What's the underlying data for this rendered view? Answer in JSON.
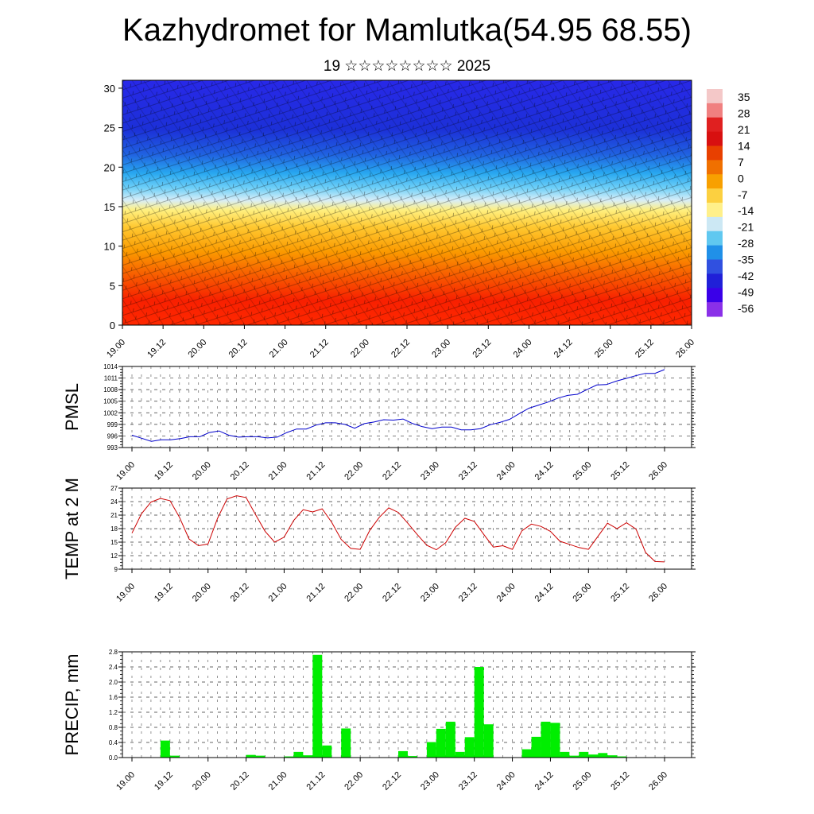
{
  "title": "Kazhydromet for Mamlutka(54.95 68.55)",
  "subtitle": "19 ☆☆☆☆☆☆☆☆ 2025",
  "chart_data": [
    {
      "type": "heatmap",
      "xlabel": "",
      "ylabel": "",
      "x_ticks": [
        "19.00",
        "19.12",
        "20.00",
        "20.12",
        "21.00",
        "21.12",
        "22.00",
        "22.12",
        "23.00",
        "23.12",
        "24.00",
        "24.12",
        "25.00",
        "25.12",
        "26.00"
      ],
      "y_ticks": [
        0,
        5,
        10,
        15,
        20,
        25,
        30
      ],
      "ylim": [
        0,
        31
      ],
      "colorbar_labels": [
        "35",
        "28",
        "21",
        "14",
        "7",
        "0",
        "-7",
        "-14",
        "-21",
        "-28",
        "-35",
        "-42",
        "-49",
        "-56"
      ],
      "colorbar_colors": [
        "#f4c8c8",
        "#f08080",
        "#e02020",
        "#d81010",
        "#e84000",
        "#f07000",
        "#f8a000",
        "#fcd040",
        "#fff08a",
        "#cce8f4",
        "#60c8f0",
        "#2090e8",
        "#3050e0",
        "#2020d8",
        "#3a00e8",
        "#8a30e8"
      ],
      "value_profile_by_height": [
        {
          "height": 0,
          "temperature": 25
        },
        {
          "height": 5,
          "temperature": 19
        },
        {
          "height": 10,
          "temperature": 8
        },
        {
          "height": 15,
          "temperature": -8
        },
        {
          "height": 18,
          "temperature": -28
        },
        {
          "height": 22,
          "temperature": -48
        },
        {
          "height": 26,
          "temperature": -54
        },
        {
          "height": 31,
          "temperature": -55
        }
      ],
      "wind_barbs": true
    },
    {
      "type": "line",
      "ylabel": "PMSL",
      "ylim": [
        993,
        1014
      ],
      "y_ticks": [
        "993",
        "996",
        "999",
        "1002",
        "1005",
        "1008",
        "1011",
        "1014"
      ],
      "x_ticks": [
        "19.00",
        "19.12",
        "20.00",
        "20.12",
        "21.00",
        "21.12",
        "22.00",
        "22.12",
        "23.00",
        "23.12",
        "24.00",
        "24.12",
        "25.00",
        "25.12",
        "26.00"
      ],
      "color": "#0000cc",
      "values": [
        996.2,
        995.4,
        994.6,
        995.0,
        995.0,
        995.3,
        995.8,
        995.8,
        996.9,
        997.3,
        996.2,
        995.7,
        995.8,
        995.8,
        995.5,
        995.7,
        996.9,
        997.8,
        997.8,
        998.8,
        999.4,
        999.4,
        999.0,
        998.0,
        999.2,
        999.6,
        1000.2,
        1000.1,
        1000.4,
        999.2,
        998.4,
        997.9,
        998.3,
        998.3,
        997.6,
        997.6,
        997.9,
        998.9,
        999.5,
        1000.3,
        1001.8,
        1003.2,
        1004.0,
        1004.8,
        1005.8,
        1006.5,
        1006.8,
        1008.0,
        1009.2,
        1009.3,
        1010.2,
        1010.9,
        1011.6,
        1012.2,
        1012.2,
        1013.2
      ]
    },
    {
      "type": "line",
      "ylabel": "TEMP at 2 M",
      "ylim": [
        9,
        27
      ],
      "y_ticks": [
        "9",
        "12",
        "15",
        "18",
        "21",
        "24",
        "27"
      ],
      "x_ticks": [
        "19.00",
        "19.12",
        "20.00",
        "20.12",
        "21.00",
        "21.12",
        "22.00",
        "22.12",
        "23.00",
        "23.12",
        "24.00",
        "24.12",
        "25.00",
        "25.12",
        "26.00"
      ],
      "color": "#cc0000",
      "values": [
        17.0,
        21.3,
        23.9,
        24.7,
        24.2,
        20.5,
        15.7,
        14.2,
        14.6,
        20.3,
        24.6,
        25.3,
        24.9,
        21.1,
        17.4,
        15.0,
        16.1,
        19.8,
        22.2,
        21.7,
        22.4,
        19.4,
        15.6,
        13.6,
        13.4,
        17.6,
        20.5,
        22.6,
        21.6,
        19.2,
        16.7,
        14.3,
        13.3,
        14.9,
        18.3,
        20.3,
        19.6,
        16.7,
        13.9,
        14.2,
        13.4,
        17.5,
        19.0,
        18.5,
        17.4,
        15.2,
        14.5,
        13.8,
        13.4,
        16.3,
        19.2,
        18.0,
        19.3,
        17.9,
        12.7,
        10.7,
        10.6
      ]
    },
    {
      "type": "bar",
      "ylabel": "PRECIP, mm",
      "ylim": [
        0,
        2.8
      ],
      "y_ticks": [
        "0.0",
        "0.4",
        "0.8",
        "1.2",
        "1.6",
        "2.0",
        "2.4",
        "2.8"
      ],
      "x_ticks": [
        "19.00",
        "19.12",
        "20.00",
        "20.12",
        "21.00",
        "21.12",
        "22.00",
        "22.12",
        "23.00",
        "23.12",
        "24.00",
        "24.12",
        "25.00",
        "25.12",
        "26.00"
      ],
      "color": "#00ee00",
      "values": [
        0,
        0,
        0,
        0.45,
        0.05,
        0,
        0,
        0,
        0,
        0,
        0,
        0,
        0.07,
        0.05,
        0,
        0,
        0.03,
        0.15,
        0.06,
        2.72,
        0.32,
        0,
        0.77,
        0,
        0,
        0,
        0,
        0,
        0.17,
        0.04,
        0,
        0.41,
        0.76,
        0.95,
        0.15,
        0.54,
        2.4,
        0.88,
        0,
        0,
        0,
        0.22,
        0.55,
        0.95,
        0.92,
        0.15,
        0.05,
        0.15,
        0.08,
        0.12,
        0.06,
        0.03,
        0,
        0,
        0,
        0
      ]
    }
  ]
}
